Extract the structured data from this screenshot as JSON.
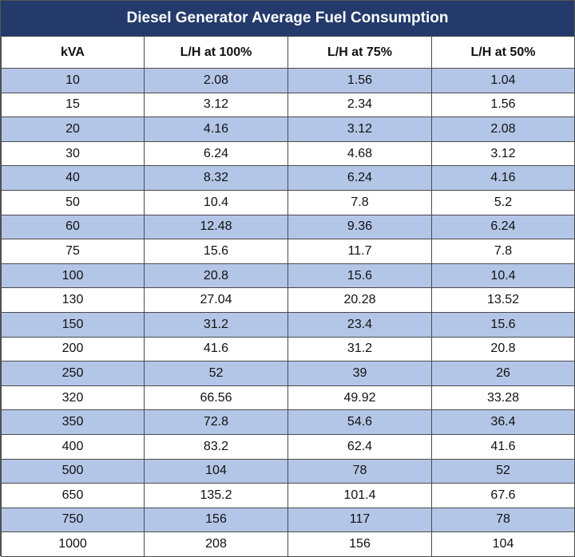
{
  "title": "Diesel Generator Average Fuel Consumption",
  "chart_data": {
    "type": "table",
    "title": "Diesel Generator Average Fuel Consumption",
    "columns": [
      "kVA",
      "L/H at 100%",
      "L/H at 75%",
      "L/H at 50%"
    ],
    "rows": [
      [
        "10",
        "2.08",
        "1.56",
        "1.04"
      ],
      [
        "15",
        "3.12",
        "2.34",
        "1.56"
      ],
      [
        "20",
        "4.16",
        "3.12",
        "2.08"
      ],
      [
        "30",
        "6.24",
        "4.68",
        "3.12"
      ],
      [
        "40",
        "8.32",
        "6.24",
        "4.16"
      ],
      [
        "50",
        "10.4",
        "7.8",
        "5.2"
      ],
      [
        "60",
        "12.48",
        "9.36",
        "6.24"
      ],
      [
        "75",
        "15.6",
        "11.7",
        "7.8"
      ],
      [
        "100",
        "20.8",
        "15.6",
        "10.4"
      ],
      [
        "130",
        "27.04",
        "20.28",
        "13.52"
      ],
      [
        "150",
        "31.2",
        "23.4",
        "15.6"
      ],
      [
        "200",
        "41.6",
        "31.2",
        "20.8"
      ],
      [
        "250",
        "52",
        "39",
        "26"
      ],
      [
        "320",
        "66.56",
        "49.92",
        "33.28"
      ],
      [
        "350",
        "72.8",
        "54.6",
        "36.4"
      ],
      [
        "400",
        "83.2",
        "62.4",
        "41.6"
      ],
      [
        "500",
        "104",
        "78",
        "52"
      ],
      [
        "650",
        "135.2",
        "101.4",
        "67.6"
      ],
      [
        "750",
        "156",
        "117",
        "78"
      ],
      [
        "1000",
        "208",
        "156",
        "104"
      ]
    ]
  },
  "colors": {
    "title_bg": "#233a6b",
    "title_text": "#ffffff",
    "band": "#b4c6e7",
    "row_alt": "#ffffff",
    "grid": "#4a4a4a"
  }
}
